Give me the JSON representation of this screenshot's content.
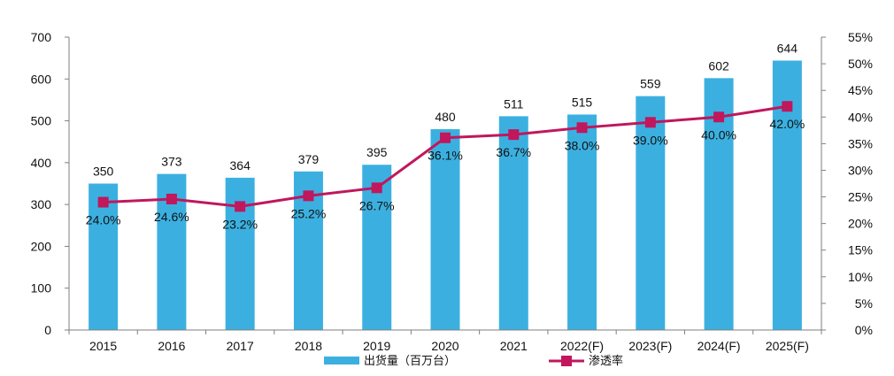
{
  "chart_data": {
    "type": "bar",
    "categories": [
      "2015",
      "2016",
      "2017",
      "2018",
      "2019",
      "2020",
      "2021",
      "2022(F)",
      "2023(F)",
      "2024(F)",
      "2025(F)"
    ],
    "series": [
      {
        "name": "出货量（百万台）",
        "type": "bar",
        "axis": "left",
        "color": "#3bb0e0",
        "values": [
          350,
          373,
          364,
          379,
          395,
          480,
          511,
          515,
          559,
          602,
          644
        ],
        "labels": [
          "350",
          "373",
          "364",
          "379",
          "395",
          "480",
          "511",
          "515",
          "559",
          "602",
          "644"
        ]
      },
      {
        "name": "渗透率",
        "type": "line",
        "axis": "right",
        "color": "#c0175d",
        "values": [
          24.0,
          24.6,
          23.2,
          25.2,
          26.7,
          36.1,
          36.7,
          38.0,
          39.0,
          40.0,
          42.0
        ],
        "labels": [
          "24.0%",
          "24.6%",
          "23.2%",
          "25.2%",
          "26.7%",
          "36.1%",
          "36.7%",
          "38.0%",
          "39.0%",
          "40.0%",
          "42.0%"
        ]
      }
    ],
    "y_left": {
      "min": 0,
      "max": 700,
      "ticks": [
        "0",
        "100",
        "200",
        "300",
        "400",
        "500",
        "600",
        "700"
      ]
    },
    "y_right": {
      "min": 0,
      "max": 55,
      "ticks": [
        "0%",
        "5%",
        "10%",
        "15%",
        "20%",
        "25%",
        "30%",
        "35%",
        "40%",
        "45%",
        "50%",
        "55%"
      ]
    },
    "title": "",
    "xlabel": "",
    "ylabel": "",
    "grid": false,
    "legend_position": "bottom-center"
  }
}
